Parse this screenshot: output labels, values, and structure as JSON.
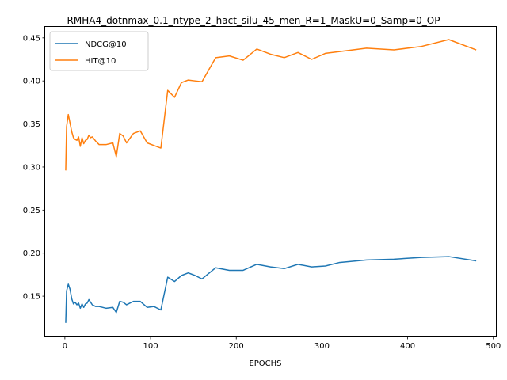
{
  "chart_data": {
    "type": "line",
    "title": "RMHA4_dotnmax_0.1_ntype_2_hact_silu_45_men_R=1_MaskU=0_Samp=0_OP",
    "xlabel": "EPOCHS",
    "ylabel": "",
    "xlim": [
      -23,
      503
    ],
    "ylim": [
      0.1032,
      0.4627
    ],
    "xticks": [
      0,
      100,
      200,
      300,
      400,
      500
    ],
    "yticks": [
      0.15,
      0.2,
      0.25,
      0.3,
      0.35,
      0.4,
      0.45
    ],
    "xtick_labels": [
      "0",
      "100",
      "200",
      "300",
      "400",
      "500"
    ],
    "ytick_labels": [
      "0.15",
      "0.20",
      "0.25",
      "0.30",
      "0.35",
      "0.40",
      "0.45"
    ],
    "grid": false,
    "legend_position": "upper-left",
    "series": [
      {
        "name": "NDCG@10",
        "color": "#1f77b4",
        "x": [
          1,
          2,
          4,
          6,
          8,
          10,
          12,
          14,
          16,
          18,
          20,
          22,
          24,
          26,
          28,
          30,
          32,
          36,
          40,
          48,
          56,
          60,
          64,
          68,
          72,
          80,
          88,
          96,
          104,
          112,
          120,
          128,
          136,
          144,
          152,
          160,
          176,
          192,
          208,
          224,
          240,
          256,
          272,
          288,
          304,
          320,
          352,
          384,
          416,
          448,
          480
        ],
        "y": [
          0.119,
          0.156,
          0.164,
          0.158,
          0.147,
          0.141,
          0.143,
          0.14,
          0.142,
          0.136,
          0.141,
          0.137,
          0.141,
          0.142,
          0.146,
          0.143,
          0.14,
          0.138,
          0.138,
          0.136,
          0.137,
          0.131,
          0.144,
          0.143,
          0.14,
          0.144,
          0.144,
          0.137,
          0.138,
          0.134,
          0.172,
          0.167,
          0.174,
          0.177,
          0.174,
          0.17,
          0.183,
          0.18,
          0.18,
          0.187,
          0.184,
          0.182,
          0.187,
          0.184,
          0.185,
          0.189,
          0.192,
          0.193,
          0.195,
          0.196,
          0.191
        ]
      },
      {
        "name": "HIT@10",
        "color": "#ff7f0e",
        "x": [
          1,
          2,
          4,
          6,
          8,
          10,
          12,
          14,
          16,
          18,
          20,
          22,
          24,
          26,
          28,
          30,
          32,
          36,
          40,
          48,
          56,
          60,
          64,
          68,
          72,
          80,
          88,
          96,
          104,
          112,
          120,
          128,
          136,
          144,
          152,
          160,
          176,
          192,
          208,
          224,
          240,
          256,
          272,
          288,
          304,
          320,
          352,
          384,
          416,
          448,
          480
        ],
        "y": [
          0.296,
          0.347,
          0.361,
          0.351,
          0.341,
          0.334,
          0.332,
          0.331,
          0.335,
          0.324,
          0.334,
          0.327,
          0.331,
          0.332,
          0.337,
          0.334,
          0.335,
          0.33,
          0.326,
          0.326,
          0.328,
          0.312,
          0.339,
          0.336,
          0.328,
          0.339,
          0.342,
          0.328,
          0.325,
          0.322,
          0.389,
          0.381,
          0.398,
          0.401,
          0.4,
          0.399,
          0.427,
          0.429,
          0.424,
          0.437,
          0.431,
          0.427,
          0.433,
          0.425,
          0.432,
          0.434,
          0.438,
          0.436,
          0.44,
          0.448,
          0.436
        ]
      }
    ]
  }
}
